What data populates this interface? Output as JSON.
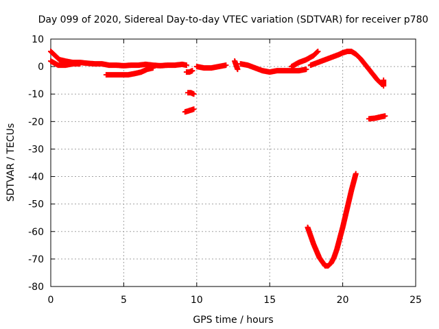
{
  "chart_data": {
    "type": "scatter",
    "title": "Day 099 of 2020, Sidereal Day-to-day VTEC variation (SDTVAR) for receiver p780",
    "xlabel": "GPS time / hours",
    "ylabel": "SDTVAR / TECUs",
    "xlim": [
      0,
      25
    ],
    "ylim": [
      -80,
      10
    ],
    "xticks": [
      0,
      5,
      10,
      15,
      20,
      25
    ],
    "yticks": [
      10,
      0,
      -10,
      -20,
      -30,
      -40,
      -50,
      -60,
      -70,
      -80
    ],
    "grid": true,
    "marker": "plus",
    "color": "#ff0000",
    "segments": [
      {
        "x": [
          0.0,
          0.3,
          0.6,
          1.0,
          1.5,
          2.0,
          2.5,
          3.0,
          3.5,
          4.0,
          4.5,
          5.0,
          5.5,
          6.0,
          6.5,
          7.0,
          7.5,
          8.0,
          8.5,
          9.0,
          9.3
        ],
        "y": [
          5.5,
          4.0,
          2.5,
          2.0,
          1.5,
          1.5,
          1.2,
          1.0,
          1.0,
          0.5,
          0.5,
          0.3,
          0.5,
          0.5,
          0.8,
          0.5,
          0.3,
          0.5,
          0.5,
          0.8,
          0.5
        ]
      },
      {
        "x": [
          0.0,
          0.5,
          1.0,
          1.5,
          2.0
        ],
        "y": [
          2.0,
          0.5,
          0.5,
          1.0,
          1.0
        ]
      },
      {
        "x": [
          3.8,
          4.3,
          4.8,
          5.3,
          5.8,
          6.2,
          6.6,
          7.0
        ],
        "y": [
          -3.0,
          -3.0,
          -3.0,
          -3.0,
          -2.5,
          -2.0,
          -1.0,
          -0.5
        ]
      },
      {
        "x": [
          9.3,
          9.5,
          9.7
        ],
        "y": [
          -2.0,
          -2.0,
          -1.5
        ]
      },
      {
        "x": [
          9.4,
          9.6,
          9.8
        ],
        "y": [
          -9.5,
          -9.5,
          -10.0
        ]
      },
      {
        "x": [
          9.2,
          9.5,
          9.8
        ],
        "y": [
          -16.5,
          -16.0,
          -15.5
        ]
      },
      {
        "x": [
          10.0,
          10.5,
          11.0,
          11.5,
          12.0
        ],
        "y": [
          0.0,
          -0.5,
          -0.5,
          0.0,
          0.5
        ]
      },
      {
        "x": [
          12.6,
          12.8
        ],
        "y": [
          2.0,
          -1.0
        ]
      },
      {
        "x": [
          13.0,
          13.5,
          14.0,
          14.5,
          15.0,
          15.5,
          16.0,
          16.5,
          17.0,
          17.5
        ],
        "y": [
          1.0,
          0.5,
          -0.5,
          -1.5,
          -2.0,
          -1.5,
          -1.5,
          -1.5,
          -1.5,
          -1.0
        ]
      },
      {
        "x": [
          16.5,
          17.0,
          17.5,
          18.0,
          18.3
        ],
        "y": [
          0.0,
          1.5,
          2.5,
          4.0,
          5.5
        ]
      },
      {
        "x": [
          17.8,
          18.3,
          18.8,
          19.3,
          19.8,
          20.0,
          20.3,
          20.6,
          20.9,
          21.2,
          21.5,
          21.8,
          22.1,
          22.4,
          22.7
        ],
        "y": [
          0.5,
          1.5,
          2.5,
          3.5,
          4.5,
          5.0,
          5.5,
          5.5,
          4.5,
          3.0,
          1.0,
          -1.0,
          -3.0,
          -5.0,
          -6.5
        ]
      },
      {
        "x": [
          22.8,
          22.8
        ],
        "y": [
          -5.0,
          -7.0
        ]
      },
      {
        "x": [
          21.8,
          22.2,
          22.6,
          22.9
        ],
        "y": [
          -19.0,
          -18.8,
          -18.3,
          -18.0
        ]
      },
      {
        "x": [
          17.6,
          17.8,
          18.0,
          18.2,
          18.4,
          18.6,
          18.8,
          19.0,
          19.2,
          19.4,
          19.6,
          19.8,
          20.0,
          20.2,
          20.4,
          20.6,
          20.8,
          20.9
        ],
        "y": [
          -58.5,
          -61.5,
          -64.5,
          -67.0,
          -69.5,
          -71.0,
          -72.5,
          -72.5,
          -71.5,
          -69.5,
          -66.5,
          -62.5,
          -58.5,
          -54.0,
          -49.5,
          -45.0,
          -41.0,
          -39.0
        ]
      }
    ]
  }
}
